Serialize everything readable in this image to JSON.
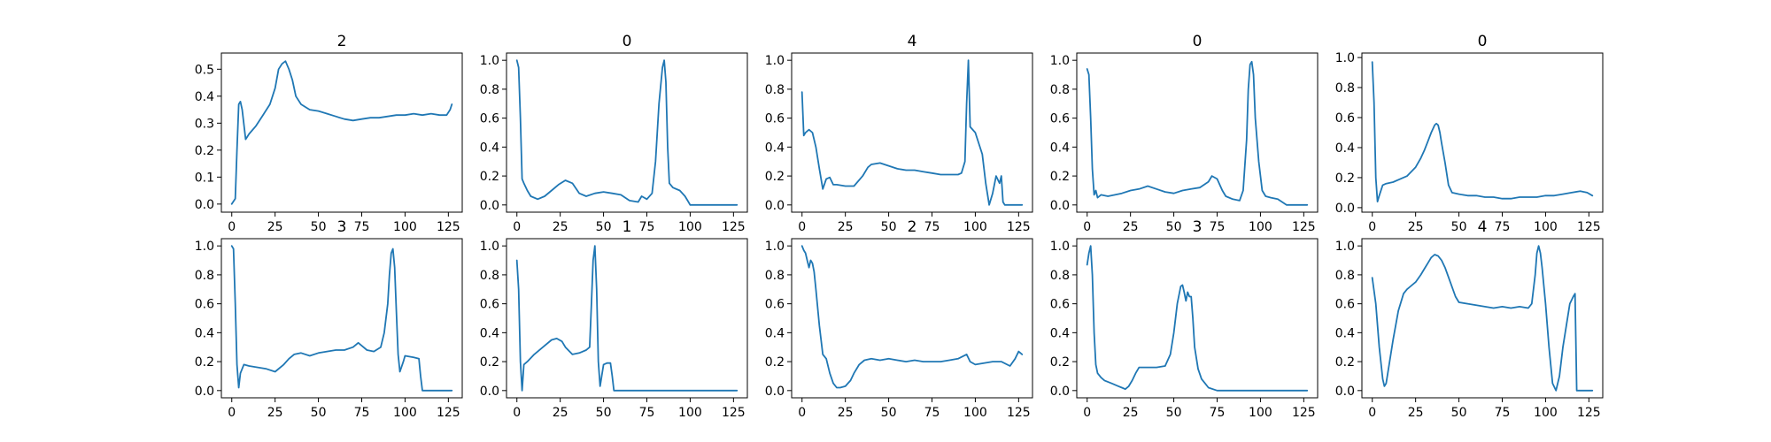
{
  "colors": {
    "series": "#1f77b4",
    "axes": "#000000",
    "background": "#ffffff"
  },
  "chart_data": [
    {
      "type": "line",
      "title": "2",
      "xlim": [
        -6,
        133
      ],
      "ylim": [
        -0.03,
        0.56
      ],
      "xticks": [
        0,
        25,
        50,
        75,
        100,
        125
      ],
      "yticks": [
        0.0,
        0.1,
        0.2,
        0.3,
        0.4,
        0.5
      ],
      "series": [
        {
          "x": [
            0,
            2,
            3,
            4,
            5,
            6,
            8,
            10,
            14,
            18,
            22,
            25,
            27,
            29,
            31,
            33,
            35,
            37,
            40,
            45,
            50,
            55,
            60,
            65,
            70,
            75,
            80,
            85,
            90,
            95,
            100,
            105,
            110,
            115,
            120,
            124,
            126,
            127
          ],
          "y": [
            0.0,
            0.02,
            0.2,
            0.37,
            0.38,
            0.35,
            0.24,
            0.26,
            0.29,
            0.33,
            0.37,
            0.43,
            0.5,
            0.52,
            0.53,
            0.5,
            0.46,
            0.4,
            0.37,
            0.35,
            0.345,
            0.335,
            0.325,
            0.315,
            0.31,
            0.315,
            0.32,
            0.32,
            0.325,
            0.33,
            0.33,
            0.335,
            0.33,
            0.335,
            0.33,
            0.33,
            0.35,
            0.37
          ]
        }
      ]
    },
    {
      "type": "line",
      "title": "0",
      "xlim": [
        -6,
        133
      ],
      "ylim": [
        -0.05,
        1.05
      ],
      "xticks": [
        0,
        25,
        50,
        75,
        100,
        125
      ],
      "yticks": [
        0.0,
        0.2,
        0.4,
        0.6,
        0.8,
        1.0
      ],
      "series": [
        {
          "x": [
            0,
            1,
            2,
            3,
            4,
            6,
            8,
            12,
            16,
            20,
            24,
            28,
            32,
            36,
            40,
            45,
            50,
            55,
            60,
            65,
            70,
            72,
            75,
            78,
            80,
            82,
            84,
            85,
            86,
            87,
            88,
            90,
            94,
            97,
            99,
            100,
            110,
            120,
            127
          ],
          "y": [
            1.0,
            0.95,
            0.6,
            0.18,
            0.15,
            0.1,
            0.06,
            0.04,
            0.06,
            0.1,
            0.14,
            0.17,
            0.15,
            0.08,
            0.06,
            0.08,
            0.09,
            0.08,
            0.07,
            0.03,
            0.02,
            0.06,
            0.04,
            0.08,
            0.3,
            0.7,
            0.95,
            1.0,
            0.85,
            0.4,
            0.15,
            0.12,
            0.1,
            0.06,
            0.02,
            0.0,
            0.0,
            0.0,
            0.0
          ]
        }
      ]
    },
    {
      "type": "line",
      "title": "4",
      "xlim": [
        -6,
        133
      ],
      "ylim": [
        -0.05,
        1.05
      ],
      "xticks": [
        0,
        25,
        50,
        75,
        100,
        125
      ],
      "yticks": [
        0.0,
        0.2,
        0.4,
        0.6,
        0.8,
        1.0
      ],
      "series": [
        {
          "x": [
            0,
            1,
            2,
            4,
            6,
            8,
            10,
            12,
            14,
            16,
            18,
            20,
            25,
            30,
            35,
            38,
            40,
            45,
            50,
            55,
            60,
            65,
            70,
            75,
            80,
            85,
            90,
            92,
            94,
            95,
            96,
            97,
            100,
            104,
            106,
            108,
            110,
            112,
            114,
            115,
            116,
            117,
            120,
            127
          ],
          "y": [
            0.78,
            0.48,
            0.5,
            0.52,
            0.5,
            0.4,
            0.25,
            0.11,
            0.18,
            0.19,
            0.14,
            0.14,
            0.13,
            0.13,
            0.2,
            0.26,
            0.28,
            0.29,
            0.27,
            0.25,
            0.24,
            0.24,
            0.23,
            0.22,
            0.21,
            0.21,
            0.21,
            0.22,
            0.3,
            0.7,
            1.0,
            0.54,
            0.5,
            0.35,
            0.15,
            0.0,
            0.08,
            0.2,
            0.15,
            0.2,
            0.02,
            0.0,
            0.0,
            0.0
          ]
        }
      ]
    },
    {
      "type": "line",
      "title": "0",
      "xlim": [
        -6,
        133
      ],
      "ylim": [
        -0.05,
        1.05
      ],
      "xticks": [
        0,
        25,
        50,
        75,
        100,
        125
      ],
      "yticks": [
        0.0,
        0.2,
        0.4,
        0.6,
        0.8,
        1.0
      ],
      "series": [
        {
          "x": [
            0,
            1,
            2,
            3,
            4,
            5,
            6,
            8,
            12,
            16,
            20,
            25,
            30,
            35,
            40,
            45,
            50,
            55,
            60,
            65,
            70,
            72,
            75,
            78,
            80,
            84,
            88,
            90,
            92,
            93,
            94,
            95,
            96,
            97,
            99,
            101,
            103,
            106,
            110,
            115,
            127
          ],
          "y": [
            0.94,
            0.9,
            0.6,
            0.25,
            0.07,
            0.1,
            0.05,
            0.07,
            0.06,
            0.07,
            0.08,
            0.1,
            0.11,
            0.13,
            0.11,
            0.09,
            0.08,
            0.1,
            0.11,
            0.12,
            0.16,
            0.2,
            0.18,
            0.1,
            0.06,
            0.04,
            0.03,
            0.1,
            0.45,
            0.8,
            0.97,
            0.99,
            0.9,
            0.6,
            0.3,
            0.1,
            0.06,
            0.05,
            0.04,
            0.0,
            0.0
          ]
        }
      ]
    },
    {
      "type": "line",
      "title": "0",
      "xlim": [
        -6,
        133
      ],
      "ylim": [
        -0.03,
        1.03
      ],
      "xticks": [
        0,
        25,
        50,
        75,
        100,
        125
      ],
      "yticks": [
        0.0,
        0.2,
        0.4,
        0.6,
        0.8,
        1.0
      ],
      "series": [
        {
          "x": [
            0,
            1,
            2,
            3,
            4,
            6,
            8,
            12,
            16,
            20,
            25,
            28,
            30,
            32,
            34,
            36,
            37,
            38,
            39,
            40,
            42,
            44,
            46,
            50,
            55,
            60,
            65,
            70,
            75,
            80,
            85,
            90,
            95,
            100,
            105,
            110,
            115,
            120,
            124,
            127
          ],
          "y": [
            0.97,
            0.7,
            0.2,
            0.04,
            0.08,
            0.15,
            0.16,
            0.17,
            0.19,
            0.21,
            0.27,
            0.33,
            0.38,
            0.44,
            0.5,
            0.55,
            0.56,
            0.55,
            0.5,
            0.43,
            0.3,
            0.15,
            0.1,
            0.09,
            0.08,
            0.08,
            0.07,
            0.07,
            0.06,
            0.06,
            0.07,
            0.07,
            0.07,
            0.08,
            0.08,
            0.09,
            0.1,
            0.11,
            0.1,
            0.08
          ]
        }
      ]
    },
    {
      "type": "line",
      "title": "3",
      "xlim": [
        -6,
        133
      ],
      "ylim": [
        -0.05,
        1.05
      ],
      "xticks": [
        0,
        25,
        50,
        75,
        100,
        125
      ],
      "yticks": [
        0.0,
        0.2,
        0.4,
        0.6,
        0.8,
        1.0
      ],
      "series": [
        {
          "x": [
            0,
            1,
            2,
            3,
            4,
            5,
            7,
            10,
            15,
            20,
            25,
            30,
            33,
            36,
            40,
            45,
            50,
            55,
            60,
            65,
            70,
            73,
            75,
            78,
            82,
            86,
            88,
            90,
            91,
            92,
            93,
            94,
            95,
            96,
            97,
            99,
            100,
            105,
            108,
            109,
            110,
            115,
            120,
            127
          ],
          "y": [
            1.0,
            0.98,
            0.6,
            0.18,
            0.02,
            0.12,
            0.18,
            0.17,
            0.16,
            0.15,
            0.13,
            0.18,
            0.22,
            0.25,
            0.26,
            0.24,
            0.26,
            0.27,
            0.28,
            0.28,
            0.3,
            0.33,
            0.31,
            0.28,
            0.27,
            0.3,
            0.4,
            0.6,
            0.8,
            0.95,
            0.98,
            0.85,
            0.55,
            0.25,
            0.13,
            0.2,
            0.24,
            0.23,
            0.22,
            0.1,
            0.0,
            0.0,
            0.0,
            0.0
          ]
        }
      ]
    },
    {
      "type": "line",
      "title": "1",
      "xlim": [
        -6,
        133
      ],
      "ylim": [
        -0.05,
        1.05
      ],
      "xticks": [
        0,
        25,
        50,
        75,
        100,
        125
      ],
      "yticks": [
        0.0,
        0.2,
        0.4,
        0.6,
        0.8,
        1.0
      ],
      "series": [
        {
          "x": [
            0,
            1,
            2,
            3,
            4,
            6,
            10,
            15,
            20,
            23,
            26,
            28,
            32,
            36,
            40,
            42,
            43,
            44,
            45,
            46,
            47,
            48,
            50,
            52,
            54,
            55,
            56,
            60,
            80,
            100,
            127
          ],
          "y": [
            0.9,
            0.7,
            0.2,
            0.0,
            0.18,
            0.2,
            0.25,
            0.3,
            0.35,
            0.36,
            0.34,
            0.3,
            0.25,
            0.26,
            0.28,
            0.3,
            0.6,
            0.9,
            1.0,
            0.7,
            0.2,
            0.03,
            0.18,
            0.19,
            0.19,
            0.1,
            0.0,
            0.0,
            0.0,
            0.0,
            0.0
          ]
        }
      ]
    },
    {
      "type": "line",
      "title": "2",
      "xlim": [
        -6,
        133
      ],
      "ylim": [
        -0.05,
        1.05
      ],
      "xticks": [
        0,
        25,
        50,
        75,
        100,
        125
      ],
      "yticks": [
        0.0,
        0.2,
        0.4,
        0.6,
        0.8,
        1.0
      ],
      "series": [
        {
          "x": [
            0,
            1,
            2,
            3,
            4,
            5,
            6,
            7,
            8,
            10,
            12,
            14,
            16,
            18,
            20,
            22,
            25,
            28,
            30,
            33,
            36,
            40,
            45,
            50,
            55,
            60,
            65,
            70,
            75,
            80,
            85,
            90,
            95,
            97,
            100,
            105,
            110,
            115,
            120,
            123,
            125,
            127
          ],
          "y": [
            1.0,
            0.97,
            0.95,
            0.9,
            0.85,
            0.9,
            0.88,
            0.82,
            0.7,
            0.45,
            0.25,
            0.22,
            0.12,
            0.05,
            0.02,
            0.02,
            0.03,
            0.07,
            0.12,
            0.18,
            0.21,
            0.22,
            0.21,
            0.22,
            0.21,
            0.2,
            0.21,
            0.2,
            0.2,
            0.2,
            0.21,
            0.22,
            0.25,
            0.2,
            0.18,
            0.19,
            0.2,
            0.2,
            0.17,
            0.22,
            0.27,
            0.25
          ]
        }
      ]
    },
    {
      "type": "line",
      "title": "3",
      "xlim": [
        -6,
        133
      ],
      "ylim": [
        -0.05,
        1.05
      ],
      "xticks": [
        0,
        25,
        50,
        75,
        100,
        125
      ],
      "yticks": [
        0.0,
        0.2,
        0.4,
        0.6,
        0.8,
        1.0
      ],
      "series": [
        {
          "x": [
            0,
            1,
            2,
            3,
            4,
            5,
            6,
            8,
            10,
            14,
            18,
            20,
            22,
            24,
            26,
            28,
            30,
            35,
            40,
            45,
            48,
            50,
            52,
            54,
            55,
            56,
            57,
            58,
            59,
            60,
            61,
            62,
            64,
            66,
            68,
            70,
            75,
            80,
            90,
            100,
            110,
            127
          ],
          "y": [
            0.87,
            0.95,
            1.0,
            0.8,
            0.4,
            0.18,
            0.12,
            0.09,
            0.07,
            0.05,
            0.03,
            0.02,
            0.01,
            0.03,
            0.07,
            0.12,
            0.16,
            0.16,
            0.16,
            0.17,
            0.25,
            0.4,
            0.6,
            0.72,
            0.73,
            0.68,
            0.62,
            0.68,
            0.65,
            0.65,
            0.5,
            0.3,
            0.15,
            0.08,
            0.05,
            0.02,
            0.0,
            0.0,
            0.0,
            0.0,
            0.0,
            0.0
          ]
        }
      ]
    },
    {
      "type": "line",
      "title": "4",
      "xlim": [
        -6,
        133
      ],
      "ylim": [
        -0.05,
        1.05
      ],
      "xticks": [
        0,
        25,
        50,
        75,
        100,
        125
      ],
      "yticks": [
        0.0,
        0.2,
        0.4,
        0.6,
        0.8,
        1.0
      ],
      "series": [
        {
          "x": [
            0,
            2,
            4,
            6,
            7,
            8,
            10,
            12,
            15,
            18,
            20,
            22,
            25,
            28,
            30,
            32,
            34,
            36,
            38,
            40,
            42,
            45,
            48,
            50,
            55,
            60,
            65,
            70,
            75,
            80,
            85,
            90,
            92,
            94,
            95,
            96,
            97,
            98,
            100,
            102,
            104,
            106,
            108,
            110,
            112,
            114,
            116,
            117,
            118,
            119,
            120,
            127
          ],
          "y": [
            0.78,
            0.6,
            0.3,
            0.08,
            0.03,
            0.05,
            0.2,
            0.35,
            0.55,
            0.67,
            0.7,
            0.72,
            0.75,
            0.8,
            0.84,
            0.88,
            0.92,
            0.94,
            0.93,
            0.9,
            0.85,
            0.75,
            0.65,
            0.61,
            0.6,
            0.59,
            0.58,
            0.57,
            0.58,
            0.57,
            0.58,
            0.57,
            0.6,
            0.8,
            0.95,
            1.0,
            0.95,
            0.85,
            0.6,
            0.3,
            0.05,
            0.0,
            0.1,
            0.3,
            0.45,
            0.6,
            0.65,
            0.67,
            0.0,
            0.0,
            0.0,
            0.0
          ]
        }
      ]
    }
  ]
}
